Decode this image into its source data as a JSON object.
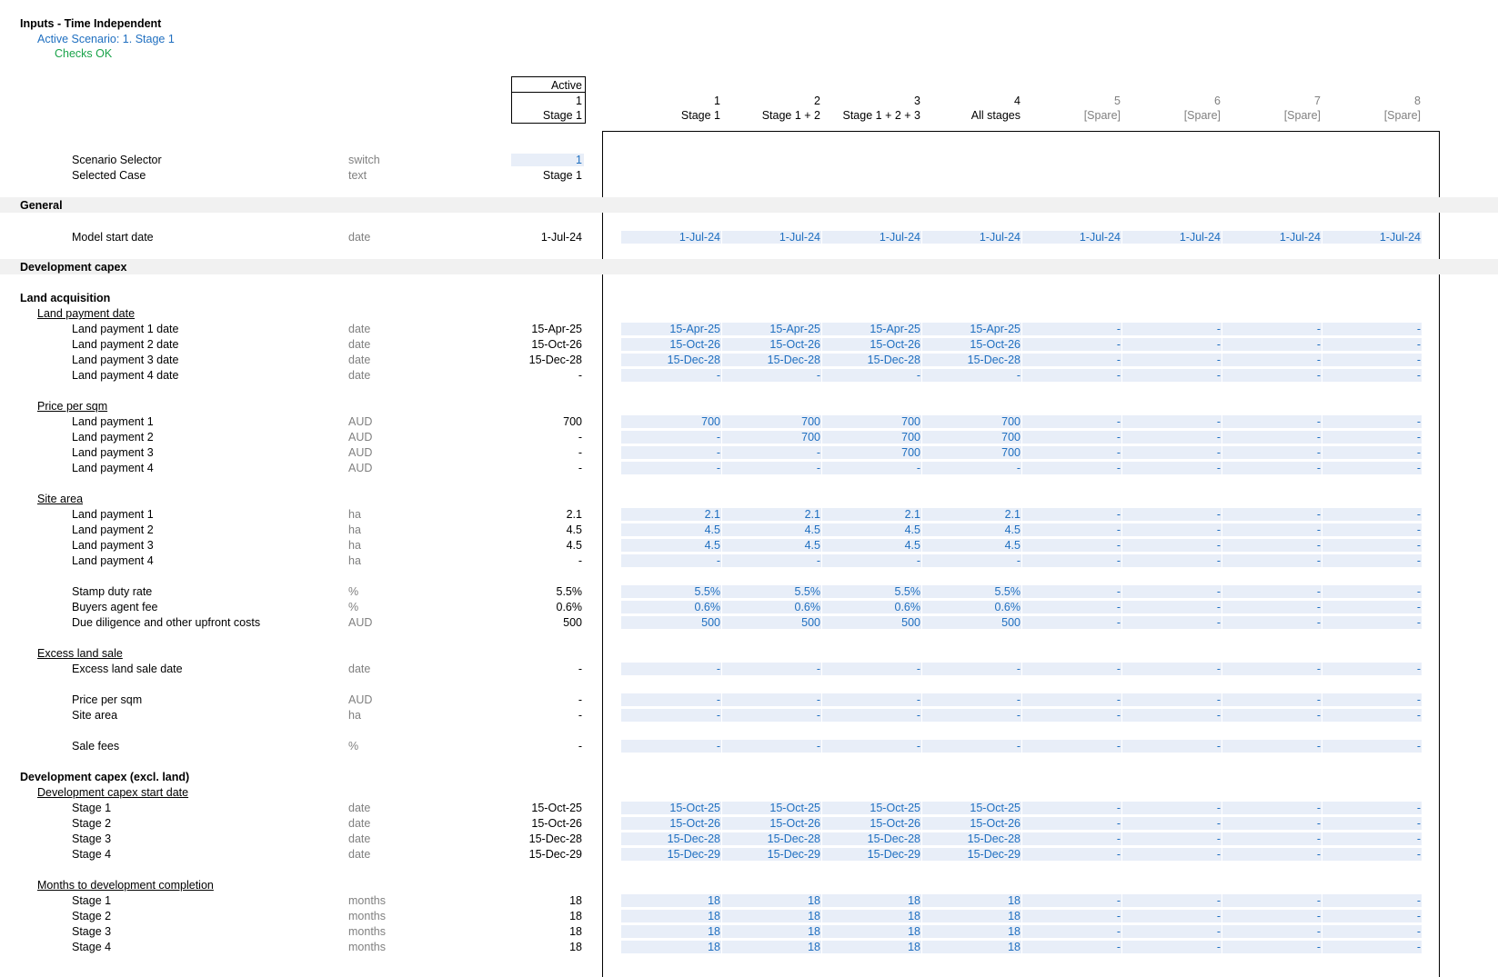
{
  "header": {
    "title": "Inputs - Time Independent",
    "active_scenario": "Active Scenario: 1. Stage 1",
    "checks": "Checks OK"
  },
  "columns": {
    "active_header": "Active",
    "active_num": "1",
    "active_name": "Stage 1",
    "scenarios": [
      {
        "num": "1",
        "name": "Stage 1"
      },
      {
        "num": "2",
        "name": "Stage 1 + 2"
      },
      {
        "num": "3",
        "name": "Stage 1 + 2 + 3"
      },
      {
        "num": "4",
        "name": "All stages"
      },
      {
        "num": "5",
        "name": "[Spare]"
      },
      {
        "num": "6",
        "name": "[Spare]"
      },
      {
        "num": "7",
        "name": "[Spare]"
      },
      {
        "num": "8",
        "name": "[Spare]"
      }
    ]
  },
  "selector": {
    "scenario_label": "Scenario Selector",
    "scenario_unit": "switch",
    "scenario_value": "1",
    "case_label": "Selected Case",
    "case_unit": "text",
    "case_value": "Stage 1"
  },
  "rows": [
    {
      "type": "band",
      "label": "General"
    },
    {
      "type": "data",
      "label": "Model start date",
      "unit": "date",
      "active": "1-Jul-24",
      "values": [
        "1-Jul-24",
        "1-Jul-24",
        "1-Jul-24",
        "1-Jul-24",
        "1-Jul-24",
        "1-Jul-24",
        "1-Jul-24",
        "1-Jul-24"
      ]
    },
    {
      "type": "band",
      "label": "Development capex"
    },
    {
      "type": "section",
      "label": "Land acquisition"
    },
    {
      "type": "sub",
      "label": "Land payment date"
    },
    {
      "type": "data",
      "label": "Land payment 1 date",
      "unit": "date",
      "active": "15-Apr-25",
      "values": [
        "15-Apr-25",
        "15-Apr-25",
        "15-Apr-25",
        "15-Apr-25",
        "-",
        "-",
        "-",
        "-"
      ]
    },
    {
      "type": "data",
      "label": "Land payment 2 date",
      "unit": "date",
      "active": "15-Oct-26",
      "values": [
        "15-Oct-26",
        "15-Oct-26",
        "15-Oct-26",
        "15-Oct-26",
        "-",
        "-",
        "-",
        "-"
      ]
    },
    {
      "type": "data",
      "label": "Land payment 3 date",
      "unit": "date",
      "active": "15-Dec-28",
      "values": [
        "15-Dec-28",
        "15-Dec-28",
        "15-Dec-28",
        "15-Dec-28",
        "-",
        "-",
        "-",
        "-"
      ]
    },
    {
      "type": "data",
      "label": "Land payment 4 date",
      "unit": "date",
      "active": "-",
      "values": [
        "-",
        "-",
        "-",
        "-",
        "-",
        "-",
        "-",
        "-"
      ]
    },
    {
      "type": "sub",
      "label": "Price per sqm"
    },
    {
      "type": "data",
      "label": "Land payment 1",
      "unit": "AUD",
      "active": "700",
      "values": [
        "700",
        "700",
        "700",
        "700",
        "-",
        "-",
        "-",
        "-"
      ]
    },
    {
      "type": "data",
      "label": "Land payment 2",
      "unit": "AUD",
      "active": "-",
      "values": [
        "-",
        "700",
        "700",
        "700",
        "-",
        "-",
        "-",
        "-"
      ]
    },
    {
      "type": "data",
      "label": "Land payment 3",
      "unit": "AUD",
      "active": "-",
      "values": [
        "-",
        "-",
        "700",
        "700",
        "-",
        "-",
        "-",
        "-"
      ]
    },
    {
      "type": "data",
      "label": "Land payment 4",
      "unit": "AUD",
      "active": "-",
      "values": [
        "-",
        "-",
        "-",
        "-",
        "-",
        "-",
        "-",
        "-"
      ]
    },
    {
      "type": "sub",
      "label": "Site area"
    },
    {
      "type": "data",
      "label": "Land payment 1",
      "unit": "ha",
      "active": "2.1",
      "values": [
        "2.1",
        "2.1",
        "2.1",
        "2.1",
        "-",
        "-",
        "-",
        "-"
      ]
    },
    {
      "type": "data",
      "label": "Land payment 2",
      "unit": "ha",
      "active": "4.5",
      "values": [
        "4.5",
        "4.5",
        "4.5",
        "4.5",
        "-",
        "-",
        "-",
        "-"
      ]
    },
    {
      "type": "data",
      "label": "Land payment 3",
      "unit": "ha",
      "active": "4.5",
      "values": [
        "4.5",
        "4.5",
        "4.5",
        "4.5",
        "-",
        "-",
        "-",
        "-"
      ]
    },
    {
      "type": "data",
      "label": "Land payment 4",
      "unit": "ha",
      "active": "-",
      "values": [
        "-",
        "-",
        "-",
        "-",
        "-",
        "-",
        "-",
        "-"
      ]
    },
    {
      "type": "data",
      "label": "Stamp duty rate",
      "unit": "%",
      "active": "5.5%",
      "values": [
        "5.5%",
        "5.5%",
        "5.5%",
        "5.5%",
        "-",
        "-",
        "-",
        "-"
      ]
    },
    {
      "type": "data",
      "label": "Buyers agent fee",
      "unit": "%",
      "active": "0.6%",
      "values": [
        "0.6%",
        "0.6%",
        "0.6%",
        "0.6%",
        "-",
        "-",
        "-",
        "-"
      ]
    },
    {
      "type": "data",
      "label": "Due diligence and other upfront costs",
      "unit": "AUD",
      "active": "500",
      "values": [
        "500",
        "500",
        "500",
        "500",
        "-",
        "-",
        "-",
        "-"
      ]
    },
    {
      "type": "sub",
      "label": "Excess land sale"
    },
    {
      "type": "data",
      "label": "Excess land sale date",
      "unit": "date",
      "active": "-",
      "values": [
        "-",
        "-",
        "-",
        "-",
        "-",
        "-",
        "-",
        "-"
      ]
    },
    {
      "type": "data",
      "label": "Price per sqm",
      "unit": "AUD",
      "active": "-",
      "values": [
        "-",
        "-",
        "-",
        "-",
        "-",
        "-",
        "-",
        "-"
      ]
    },
    {
      "type": "data",
      "label": "Site area",
      "unit": "ha",
      "active": "-",
      "values": [
        "-",
        "-",
        "-",
        "-",
        "-",
        "-",
        "-",
        "-"
      ]
    },
    {
      "type": "data",
      "label": "Sale fees",
      "unit": "%",
      "active": "-",
      "values": [
        "-",
        "-",
        "-",
        "-",
        "-",
        "-",
        "-",
        "-"
      ]
    },
    {
      "type": "section",
      "label": "Development capex (excl. land)"
    },
    {
      "type": "sub",
      "label": "Development capex start date"
    },
    {
      "type": "data",
      "label": "Stage 1",
      "unit": "date",
      "active": "15-Oct-25",
      "values": [
        "15-Oct-25",
        "15-Oct-25",
        "15-Oct-25",
        "15-Oct-25",
        "-",
        "-",
        "-",
        "-"
      ]
    },
    {
      "type": "data",
      "label": "Stage 2",
      "unit": "date",
      "active": "15-Oct-26",
      "values": [
        "15-Oct-26",
        "15-Oct-26",
        "15-Oct-26",
        "15-Oct-26",
        "-",
        "-",
        "-",
        "-"
      ]
    },
    {
      "type": "data",
      "label": "Stage 3",
      "unit": "date",
      "active": "15-Dec-28",
      "values": [
        "15-Dec-28",
        "15-Dec-28",
        "15-Dec-28",
        "15-Dec-28",
        "-",
        "-",
        "-",
        "-"
      ]
    },
    {
      "type": "data",
      "label": "Stage 4",
      "unit": "date",
      "active": "15-Dec-29",
      "values": [
        "15-Dec-29",
        "15-Dec-29",
        "15-Dec-29",
        "15-Dec-29",
        "-",
        "-",
        "-",
        "-"
      ]
    },
    {
      "type": "sub",
      "label": "Months to development completion"
    },
    {
      "type": "data",
      "label": "Stage 1",
      "unit": "months",
      "active": "18",
      "values": [
        "18",
        "18",
        "18",
        "18",
        "-",
        "-",
        "-",
        "-"
      ]
    },
    {
      "type": "data",
      "label": "Stage 2",
      "unit": "months",
      "active": "18",
      "values": [
        "18",
        "18",
        "18",
        "18",
        "-",
        "-",
        "-",
        "-"
      ]
    },
    {
      "type": "data",
      "label": "Stage 3",
      "unit": "months",
      "active": "18",
      "values": [
        "18",
        "18",
        "18",
        "18",
        "-",
        "-",
        "-",
        "-"
      ]
    },
    {
      "type": "data",
      "label": "Stage 4",
      "unit": "months",
      "active": "18",
      "values": [
        "18",
        "18",
        "18",
        "18",
        "-",
        "-",
        "-",
        "-"
      ]
    }
  ]
}
